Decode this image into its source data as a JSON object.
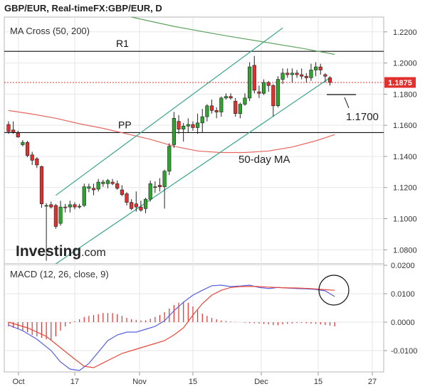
{
  "header": {
    "title": "GBP/EUR, Real-timeFX:GBP/EUR, D"
  },
  "chart_data": [
    {
      "type": "candlestick",
      "indicator_label": "MA Cross (50, 200)",
      "y_axis_ticks": [
        "1.2200",
        "1.2000",
        "1.1800",
        "1.1600",
        "1.1400",
        "1.1200",
        "1.1000",
        "1.0800"
      ],
      "ylim": [
        1.071,
        1.2295
      ],
      "last_price": "1.1875",
      "last_price_value": 1.1875,
      "levels": [
        {
          "label": "R1",
          "value": 1.2075
        },
        {
          "label": "PP",
          "value": 1.1553
        }
      ],
      "annotations": [
        {
          "text": "1.1700"
        },
        {
          "text": "50-day MA"
        }
      ],
      "candles": [
        [
          1.1605,
          1.1625,
          1.1545,
          1.156
        ],
        [
          1.157,
          1.1625,
          1.1545,
          1.1555
        ],
        [
          1.155,
          1.1565,
          1.152,
          1.1525
        ],
        [
          1.1475,
          1.1505,
          1.1465,
          1.149
        ],
        [
          1.149,
          1.15,
          1.1395,
          1.1405
        ],
        [
          1.141,
          1.143,
          1.1345,
          1.1375
        ],
        [
          1.1385,
          1.1395,
          1.1325,
          1.1345
        ],
        [
          1.1335,
          1.134,
          1.107,
          1.1095
        ],
        [
          1.108,
          1.11,
          1.073,
          1.1085
        ],
        [
          1.109,
          1.111,
          1.1065,
          1.1075
        ],
        [
          1.1085,
          1.1095,
          1.0935,
          1.095
        ],
        [
          1.097,
          1.1115,
          1.0955,
          1.1075
        ],
        [
          1.1075,
          1.1095,
          1.104,
          1.107
        ],
        [
          1.1075,
          1.1115,
          1.104,
          1.109
        ],
        [
          1.109,
          1.1105,
          1.106,
          1.1075
        ],
        [
          1.1075,
          1.1095,
          1.1065,
          1.108
        ],
        [
          1.1085,
          1.1225,
          1.1075,
          1.1205
        ],
        [
          1.1195,
          1.1225,
          1.117,
          1.1205
        ],
        [
          1.1195,
          1.1225,
          1.115,
          1.1185
        ],
        [
          1.119,
          1.1255,
          1.1175,
          1.1235
        ],
        [
          1.1225,
          1.125,
          1.1205,
          1.1235
        ],
        [
          1.1225,
          1.1255,
          1.1195,
          1.1245
        ],
        [
          1.1235,
          1.1255,
          1.1215,
          1.1225
        ],
        [
          1.1225,
          1.1245,
          1.1185,
          1.1195
        ],
        [
          1.1185,
          1.1215,
          1.1145,
          1.1155
        ],
        [
          1.116,
          1.117,
          1.1085,
          1.1105
        ],
        [
          1.1105,
          1.1125,
          1.1055,
          1.1065
        ],
        [
          1.1095,
          1.1175,
          1.1045,
          1.1075
        ],
        [
          1.1075,
          1.1115,
          1.1045,
          1.1055
        ],
        [
          1.1065,
          1.1135,
          1.1035,
          1.1125
        ],
        [
          1.1125,
          1.1245,
          1.111,
          1.1225
        ],
        [
          1.1205,
          1.124,
          1.1165,
          1.1205
        ],
        [
          1.1215,
          1.126,
          1.1175,
          1.1205
        ],
        [
          1.1205,
          1.1315,
          1.1065,
          1.1305
        ],
        [
          1.1305,
          1.1485,
          1.128,
          1.1465
        ],
        [
          1.1475,
          1.1685,
          1.1455,
          1.1645
        ],
        [
          1.1625,
          1.1665,
          1.1545,
          1.1575
        ],
        [
          1.1575,
          1.1615,
          1.1495,
          1.1595
        ],
        [
          1.1595,
          1.1645,
          1.1555,
          1.1605
        ],
        [
          1.1605,
          1.1625,
          1.1565,
          1.1585
        ],
        [
          1.1585,
          1.1675,
          1.1545,
          1.1615
        ],
        [
          1.1615,
          1.1705,
          1.1555,
          1.1655
        ],
        [
          1.1655,
          1.1735,
          1.1625,
          1.1725
        ],
        [
          1.1725,
          1.1765,
          1.1675,
          1.1695
        ],
        [
          1.1695,
          1.1715,
          1.1645,
          1.1685
        ],
        [
          1.1685,
          1.1785,
          1.1655,
          1.1775
        ],
        [
          1.1775,
          1.1805,
          1.1765,
          1.1785
        ],
        [
          1.1785,
          1.1805,
          1.1765,
          1.1775
        ],
        [
          1.1755,
          1.1775,
          1.1655,
          1.1675
        ],
        [
          1.1675,
          1.1745,
          1.1645,
          1.1735
        ],
        [
          1.1735,
          1.1805,
          1.1725,
          1.1775
        ],
        [
          1.1775,
          1.2005,
          1.1755,
          1.1975
        ],
        [
          1.1985,
          1.2045,
          1.1805,
          1.1825
        ],
        [
          1.1815,
          1.1855,
          1.1775,
          1.1805
        ],
        [
          1.1805,
          1.1895,
          1.1795,
          1.1875
        ],
        [
          1.1875,
          1.1885,
          1.1815,
          1.1855
        ],
        [
          1.1855,
          1.1865,
          1.1655,
          1.1725
        ],
        [
          1.1725,
          1.1915,
          1.1715,
          1.1895
        ],
        [
          1.1895,
          1.1965,
          1.1865,
          1.1935
        ],
        [
          1.1935,
          1.1965,
          1.1905,
          1.1925
        ],
        [
          1.1925,
          1.1965,
          1.1875,
          1.1935
        ],
        [
          1.1935,
          1.1955,
          1.1905,
          1.1925
        ],
        [
          1.1925,
          1.1965,
          1.1895,
          1.1915
        ],
        [
          1.1915,
          1.1935,
          1.1875,
          1.1905
        ],
        [
          1.1905,
          1.1995,
          1.1885,
          1.1955
        ],
        [
          1.1955,
          1.2005,
          1.1915,
          1.1975
        ],
        [
          1.1975,
          1.1995,
          1.1925,
          1.1955
        ],
        [
          1.1925,
          1.1935,
          1.1875,
          1.1915
        ],
        [
          1.1905,
          1.1915,
          1.1855,
          1.1875
        ]
      ],
      "ma50": [
        [
          0,
          1.1695
        ],
        [
          5,
          1.1672
        ],
        [
          10,
          1.1645
        ],
        [
          15,
          1.161
        ],
        [
          20,
          1.158
        ],
        [
          25,
          1.1545
        ],
        [
          30,
          1.151
        ],
        [
          35,
          1.1465
        ],
        [
          40,
          1.1435
        ],
        [
          45,
          1.1425
        ],
        [
          50,
          1.1425
        ],
        [
          55,
          1.1435
        ],
        [
          60,
          1.146
        ],
        [
          65,
          1.15
        ],
        [
          69,
          1.154
        ]
      ],
      "ma200": [
        [
          26,
          1.2295
        ],
        [
          35,
          1.2235
        ],
        [
          45,
          1.218
        ],
        [
          55,
          1.213
        ],
        [
          62,
          1.2095
        ],
        [
          69,
          1.2055
        ]
      ],
      "channel": {
        "upper": [
          [
            10,
            1.115
          ],
          [
            58,
            1.2225
          ]
        ],
        "lower": [
          [
            10,
            1.071
          ],
          [
            68,
            1.1905
          ]
        ]
      },
      "x_ticks": [
        "Oct",
        "17",
        "Nov",
        "15",
        "Dec",
        "15",
        "27"
      ]
    },
    {
      "type": "line",
      "title": "MACD (12, 26, close, 9)",
      "y_axis_ticks": [
        "0.0200",
        "0.0100",
        "0.0000",
        "-0.0100"
      ],
      "ylim": [
        -0.0175,
        0.0205
      ],
      "macd": [
        [
          0,
          -0.001
        ],
        [
          3,
          -0.003
        ],
        [
          6,
          -0.006
        ],
        [
          9,
          -0.01
        ],
        [
          11,
          -0.014
        ],
        [
          13,
          -0.0165
        ],
        [
          15,
          -0.017
        ],
        [
          17,
          -0.0145
        ],
        [
          19,
          -0.0105
        ],
        [
          21,
          -0.0065
        ],
        [
          23,
          -0.0045
        ],
        [
          25,
          -0.0035
        ],
        [
          27,
          -0.0035
        ],
        [
          29,
          -0.0025
        ],
        [
          31,
          -0.0015
        ],
        [
          33,
          0.0005
        ],
        [
          35,
          0.004
        ],
        [
          37,
          0.007
        ],
        [
          39,
          0.0095
        ],
        [
          41,
          0.0112
        ],
        [
          43,
          0.0128
        ],
        [
          45,
          0.013
        ],
        [
          47,
          0.0125
        ],
        [
          49,
          0.0127
        ],
        [
          51,
          0.013
        ],
        [
          53,
          0.0122
        ],
        [
          55,
          0.0118
        ],
        [
          57,
          0.0122
        ],
        [
          59,
          0.012
        ],
        [
          61,
          0.0118
        ],
        [
          63,
          0.0117
        ],
        [
          65,
          0.0115
        ],
        [
          67,
          0.011
        ],
        [
          69,
          0.009
        ]
      ],
      "signal": [
        [
          0,
          0.0
        ],
        [
          4,
          -0.002
        ],
        [
          8,
          -0.005
        ],
        [
          11,
          -0.009
        ],
        [
          14,
          -0.013
        ],
        [
          16,
          -0.0155
        ],
        [
          18,
          -0.016
        ],
        [
          21,
          -0.0135
        ],
        [
          24,
          -0.011
        ],
        [
          27,
          -0.0095
        ],
        [
          30,
          -0.008
        ],
        [
          33,
          -0.0065
        ],
        [
          35,
          -0.0045
        ],
        [
          37,
          -0.002
        ],
        [
          39,
          0.0025
        ],
        [
          41,
          0.0065
        ],
        [
          43,
          0.0095
        ],
        [
          45,
          0.0112
        ],
        [
          47,
          0.0122
        ],
        [
          49,
          0.0125
        ],
        [
          52,
          0.0126
        ],
        [
          55,
          0.0123
        ],
        [
          58,
          0.0121
        ],
        [
          61,
          0.012
        ],
        [
          64,
          0.0118
        ],
        [
          67,
          0.0114
        ],
        [
          69,
          0.0112
        ]
      ],
      "histogram": [
        -0.0015,
        -0.002,
        -0.0025,
        -0.003,
        -0.0035,
        -0.0045,
        -0.005,
        -0.0055,
        -0.006,
        -0.0065,
        -0.005,
        -0.003,
        -0.0015,
        -0.0005,
        0.0003,
        0.001,
        0.0018,
        0.0022,
        0.0025,
        0.0028,
        0.0032,
        0.0032,
        0.0032,
        0.0028,
        0.0022,
        0.0015,
        0.001,
        0.0008,
        0.0006,
        0.0006,
        0.0012,
        0.0018,
        0.0025,
        0.0035,
        0.0048,
        0.006,
        0.0068,
        0.0072,
        0.0068,
        0.0055,
        0.0042,
        0.003,
        0.0022,
        0.0015,
        0.001,
        0.0006,
        0.0004,
        0.0002,
        0.0001,
        0.0,
        -0.0002,
        -0.0003,
        -0.0004,
        -0.0005,
        -0.0006,
        -0.0008,
        -0.001,
        -0.0011,
        -0.0008,
        -0.0006,
        -0.0004,
        -0.0003,
        -0.0003,
        -0.0004,
        -0.0005,
        -0.0006,
        -0.0008,
        -0.001,
        -0.0012,
        -0.0015
      ]
    }
  ],
  "watermark": {
    "brand": "Investing",
    "suffix": ".com"
  },
  "colors": {
    "up": "#2ea32e",
    "down": "#e0312f",
    "ma50": "#e7665f",
    "ma200": "#5fa35f",
    "channel": "#3aa58c",
    "macd": "#5560e0",
    "signal": "#e9463a",
    "grid": "#e6e6e6",
    "label_bg": "#e0312f"
  }
}
